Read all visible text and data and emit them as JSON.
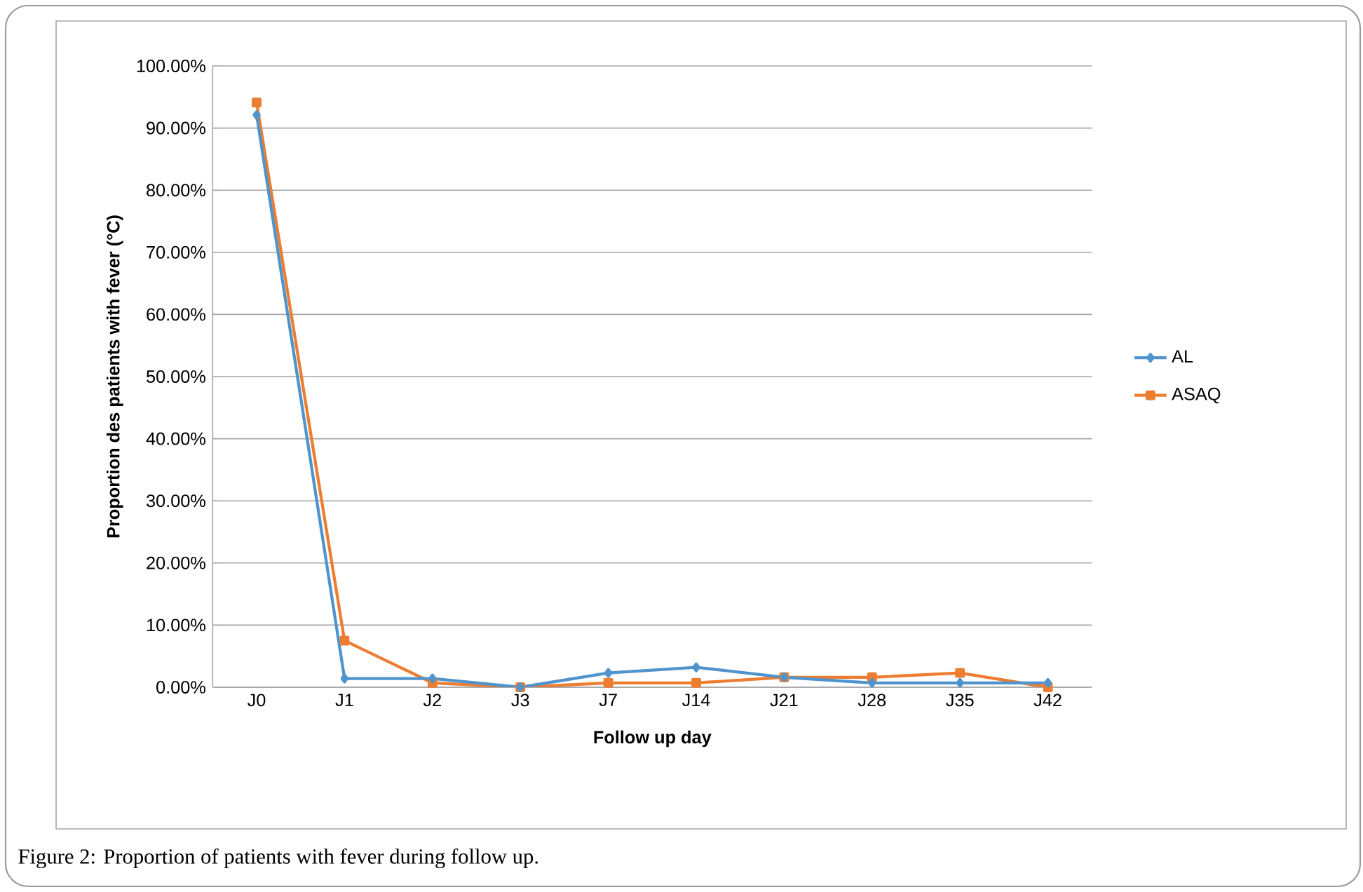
{
  "chart_data": {
    "type": "line",
    "xlabel": "Follow up day",
    "ylabel": "Proportion des patients with fever (°C)",
    "categories": [
      "J0",
      "J1",
      "J2",
      "J3",
      "J7",
      "J14",
      "J21",
      "J28",
      "J35",
      "J42"
    ],
    "series": [
      {
        "name": "AL",
        "color": "#4f94cd",
        "marker": "diamond",
        "values": [
          92.1,
          1.4,
          1.4,
          0,
          2.3,
          3.2,
          1.6,
          0.7,
          0.7,
          0.7
        ]
      },
      {
        "name": "ASAQ",
        "color": "#ed7d31",
        "marker": "square",
        "values": [
          94.1,
          7.5,
          0.7,
          0,
          0.7,
          0.7,
          1.6,
          1.6,
          2.3,
          0
        ]
      }
    ],
    "ylim": [
      0,
      100
    ],
    "yticks": [
      {
        "value": 0,
        "label": "0.00%"
      },
      {
        "value": 10,
        "label": "10.00%"
      },
      {
        "value": 20,
        "label": "20.00%"
      },
      {
        "value": 30,
        "label": "30.00%"
      },
      {
        "value": 40,
        "label": "40.00%"
      },
      {
        "value": 50,
        "label": "50.00%"
      },
      {
        "value": 60,
        "label": "60.00%"
      },
      {
        "value": 70,
        "label": "70.00%"
      },
      {
        "value": 80,
        "label": "80.00%"
      },
      {
        "value": 90,
        "label": "90.00%"
      },
      {
        "value": 100,
        "label": "100.00%"
      }
    ],
    "grid": "y",
    "legend": "right",
    "line_style": "solid",
    "annotations": [
      "Figure 2: Proportion of patients with fever during follow up."
    ]
  }
}
